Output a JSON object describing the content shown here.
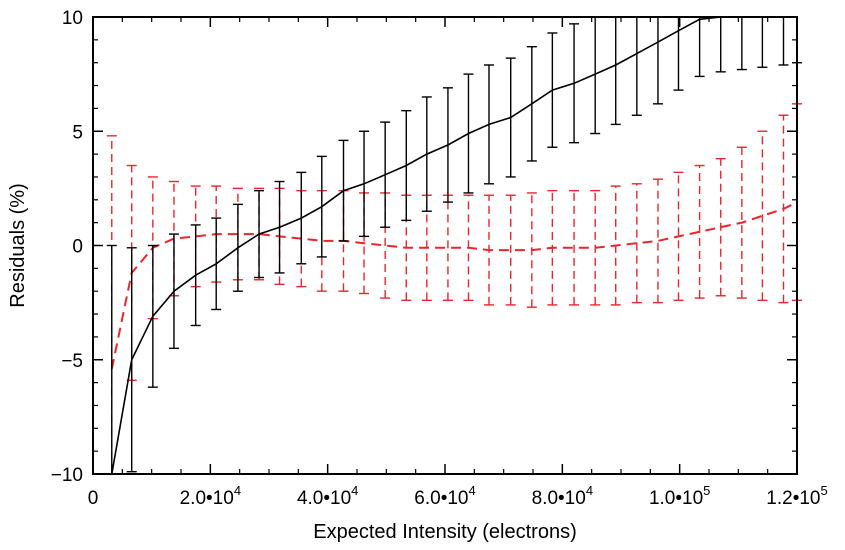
{
  "chart_data": {
    "type": "line",
    "title": "",
    "xlabel": "Expected Intensity (electrons)",
    "ylabel": "Residuals (%)",
    "xlim": [
      0,
      120000
    ],
    "ylim": [
      -10,
      10
    ],
    "grid": false,
    "x_ticks": [
      {
        "value": 0,
        "mantissa": "0",
        "exp": ""
      },
      {
        "value": 20000,
        "mantissa": "2.0•10",
        "exp": "4"
      },
      {
        "value": 40000,
        "mantissa": "4.0•10",
        "exp": "4"
      },
      {
        "value": 60000,
        "mantissa": "6.0•10",
        "exp": "4"
      },
      {
        "value": 80000,
        "mantissa": "8.0•10",
        "exp": "4"
      },
      {
        "value": 100000,
        "mantissa": "1.0•10",
        "exp": "5"
      },
      {
        "value": 120000,
        "mantissa": "1.2•10",
        "exp": "5"
      }
    ],
    "y_ticks": [
      -10,
      -5,
      0,
      5,
      10
    ],
    "x": [
      3200,
      6600,
      10200,
      13800,
      17500,
      21000,
      24700,
      28300,
      31800,
      35500,
      39000,
      42700,
      46200,
      49800,
      53400,
      56900,
      60500,
      64000,
      67500,
      71200,
      74800,
      78300,
      82000,
      85600,
      89100,
      92700,
      96300,
      99800,
      103400,
      107000,
      110600,
      114100,
      117700,
      120000
    ],
    "series": [
      {
        "name": "black",
        "color": "#000000",
        "dash": "solid",
        "values": [
          -10.0,
          -5.0,
          -3.1,
          -2.0,
          -1.3,
          -0.8,
          -0.1,
          0.5,
          0.8,
          1.2,
          1.7,
          2.4,
          2.7,
          3.1,
          3.5,
          4.0,
          4.4,
          4.9,
          5.3,
          5.6,
          6.2,
          6.8,
          7.1,
          7.5,
          7.9,
          8.4,
          8.9,
          9.4,
          9.9,
          10.0,
          10.0,
          10.0,
          10.0,
          10.0
        ],
        "errors": [
          10.0,
          4.9,
          3.1,
          2.5,
          2.2,
          2.0,
          1.9,
          1.9,
          2.0,
          2.0,
          2.2,
          2.2,
          2.3,
          2.3,
          2.4,
          2.5,
          2.5,
          2.6,
          2.6,
          2.6,
          2.5,
          2.5,
          2.6,
          2.6,
          2.6,
          2.7,
          2.7,
          2.6,
          2.5,
          2.4,
          2.3,
          2.2,
          2.1,
          2.0
        ]
      },
      {
        "name": "red",
        "color": "#e8262c",
        "dash": "dashed",
        "values": [
          -5.4,
          -1.2,
          -0.1,
          0.3,
          0.4,
          0.5,
          0.5,
          0.5,
          0.4,
          0.3,
          0.2,
          0.2,
          0.1,
          0.0,
          -0.1,
          -0.1,
          -0.1,
          -0.1,
          -0.2,
          -0.2,
          -0.2,
          -0.1,
          -0.1,
          -0.1,
          0.0,
          0.1,
          0.2,
          0.4,
          0.6,
          0.8,
          1.0,
          1.3,
          1.6,
          1.9
        ],
        "errors": [
          10.2,
          4.7,
          3.1,
          2.5,
          2.2,
          2.1,
          2.0,
          2.0,
          2.1,
          2.1,
          2.2,
          2.2,
          2.2,
          2.3,
          2.3,
          2.3,
          2.3,
          2.3,
          2.4,
          2.4,
          2.5,
          2.5,
          2.5,
          2.5,
          2.6,
          2.6,
          2.7,
          2.8,
          2.9,
          3.0,
          3.3,
          3.7,
          4.1,
          4.3
        ]
      }
    ]
  }
}
